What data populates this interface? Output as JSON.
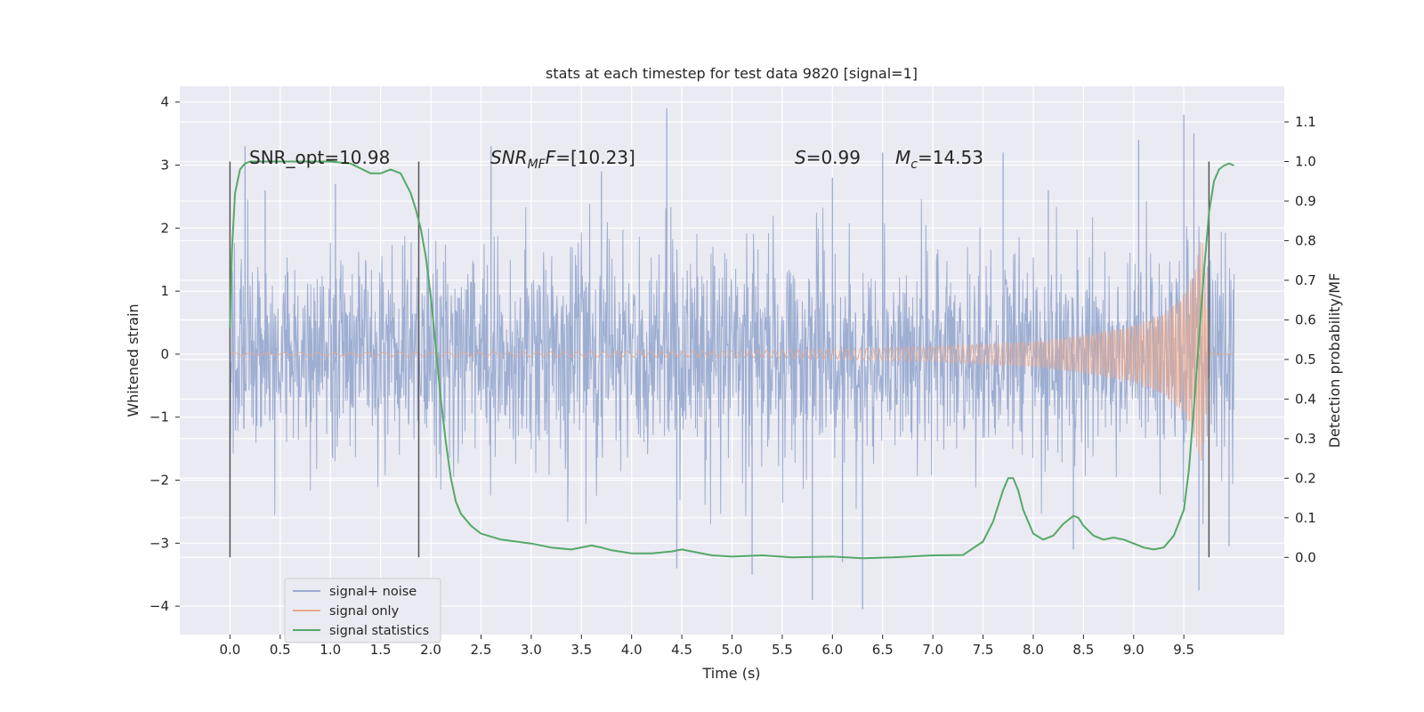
{
  "chart_data": {
    "type": "line",
    "title": "stats at each timestep for test data 9820 [signal=1]",
    "xlabel": "Time (s)",
    "ylabel": "Whitened strain",
    "y2label": "Detection probability/MF",
    "xlim": [
      -0.5,
      10.5
    ],
    "ylim": [
      -4.45,
      4.25
    ],
    "y2lim": [
      -0.195,
      1.19
    ],
    "x_ticks": [
      "0.0",
      "0.5",
      "1.0",
      "1.5",
      "2.0",
      "2.5",
      "3.0",
      "3.5",
      "4.0",
      "4.5",
      "5.0",
      "5.5",
      "6.0",
      "6.5",
      "7.0",
      "7.5",
      "8.0",
      "8.5",
      "9.0",
      "9.5"
    ],
    "y_ticks": [
      "4",
      "3",
      "2",
      "1",
      "0",
      "−1",
      "−2",
      "−3",
      "−4"
    ],
    "y2_ticks": [
      "1.1",
      "1.0",
      "0.9",
      "0.8",
      "0.7",
      "0.6",
      "0.5",
      "0.4",
      "0.3",
      "0.2",
      "0.1",
      "0.0"
    ],
    "grid": true,
    "legend_position": "lower-left",
    "series": [
      {
        "name": "signal+ noise",
        "color": "#9aabd0",
        "description_values": "dense noise, amplitude ~±2 with spikes up to ~3.9 and down to ~-4.0, from t=0 to t=10",
        "spikes": [
          [
            0.15,
            3.3
          ],
          [
            0.35,
            2.6
          ],
          [
            1.05,
            2.7
          ],
          [
            2.6,
            3.3
          ],
          [
            3.7,
            2.9
          ],
          [
            4.35,
            3.9
          ],
          [
            6.0,
            2.8
          ],
          [
            6.5,
            3.2
          ],
          [
            7.7,
            3.2
          ],
          [
            8.15,
            2.6
          ],
          [
            9.05,
            3.4
          ],
          [
            9.5,
            3.8
          ],
          [
            9.6,
            3.5
          ],
          [
            4.45,
            -3.4
          ],
          [
            5.2,
            -3.5
          ],
          [
            5.8,
            -3.9
          ],
          [
            6.3,
            -4.05
          ],
          [
            6.1,
            -3.3
          ],
          [
            8.4,
            -3.1
          ],
          [
            9.65,
            -3.75
          ],
          [
            9.95,
            -3.05
          ]
        ]
      },
      {
        "name": "signal only",
        "color": "#e5a990",
        "description_values": "chirp growing from ~0 near t=5 to amplitude ~±2 at t=9.7, then zero",
        "envelope": [
          [
            0,
            0.02
          ],
          [
            5,
            0.05
          ],
          [
            6,
            0.08
          ],
          [
            7,
            0.12
          ],
          [
            8,
            0.2
          ],
          [
            8.5,
            0.3
          ],
          [
            9,
            0.45
          ],
          [
            9.3,
            0.65
          ],
          [
            9.5,
            0.95
          ],
          [
            9.6,
            1.3
          ],
          [
            9.68,
            1.9
          ],
          [
            9.72,
            1.1
          ],
          [
            9.76,
            0.0
          ]
        ]
      },
      {
        "name": "signal statistics",
        "color": "#55a868",
        "axis": "right",
        "x": [
          0.0,
          0.02,
          0.05,
          0.1,
          0.15,
          0.2,
          0.3,
          0.5,
          0.8,
          1.0,
          1.2,
          1.4,
          1.5,
          1.6,
          1.7,
          1.8,
          1.85,
          1.9,
          1.95,
          2.0,
          2.05,
          2.1,
          2.15,
          2.2,
          2.25,
          2.3,
          2.4,
          2.5,
          2.7,
          3.0,
          3.2,
          3.4,
          3.6,
          3.7,
          3.8,
          4.0,
          4.2,
          4.4,
          4.5,
          4.6,
          4.8,
          5.0,
          5.3,
          5.6,
          6.0,
          6.3,
          6.6,
          7.0,
          7.3,
          7.5,
          7.6,
          7.7,
          7.75,
          7.8,
          7.85,
          7.9,
          8.0,
          8.1,
          8.2,
          8.3,
          8.4,
          8.45,
          8.5,
          8.6,
          8.7,
          8.8,
          8.9,
          9.0,
          9.1,
          9.2,
          9.3,
          9.4,
          9.5,
          9.55,
          9.6,
          9.65,
          9.7,
          9.75,
          9.8,
          9.85,
          9.9,
          9.95,
          10.0
        ],
        "values": [
          0.58,
          0.78,
          0.92,
          0.98,
          0.995,
          1.0,
          1.0,
          1.0,
          1.0,
          1.0,
          0.995,
          0.97,
          0.97,
          0.98,
          0.97,
          0.92,
          0.88,
          0.83,
          0.76,
          0.66,
          0.53,
          0.4,
          0.29,
          0.2,
          0.14,
          0.11,
          0.08,
          0.06,
          0.045,
          0.035,
          0.025,
          0.02,
          0.03,
          0.025,
          0.018,
          0.01,
          0.01,
          0.015,
          0.02,
          0.015,
          0.005,
          0.002,
          0.005,
          0.0,
          0.002,
          -0.002,
          0.0,
          0.005,
          0.006,
          0.04,
          0.09,
          0.17,
          0.2,
          0.2,
          0.17,
          0.12,
          0.06,
          0.045,
          0.055,
          0.085,
          0.105,
          0.1,
          0.08,
          0.055,
          0.045,
          0.05,
          0.045,
          0.035,
          0.025,
          0.02,
          0.025,
          0.055,
          0.12,
          0.22,
          0.38,
          0.55,
          0.72,
          0.87,
          0.95,
          0.98,
          0.99,
          0.995,
          0.99
        ]
      }
    ],
    "vlines": [
      0.0,
      1.88,
      9.75
    ],
    "annotations": {
      "snr_opt": "SNR_opt=10.98",
      "snr_mf_prefix": "SNR",
      "snr_mf_sub": "MF",
      "snr_mf_suffix": "=[10.23]",
      "s_sym": "S",
      "s_val": "=0.99",
      "mc_sym": "M",
      "mc_sub": "c",
      "mc_val": "=14.53"
    },
    "colors": {
      "background": "#eaeaf2",
      "grid": "#ffffff",
      "vline": "#555555"
    }
  }
}
